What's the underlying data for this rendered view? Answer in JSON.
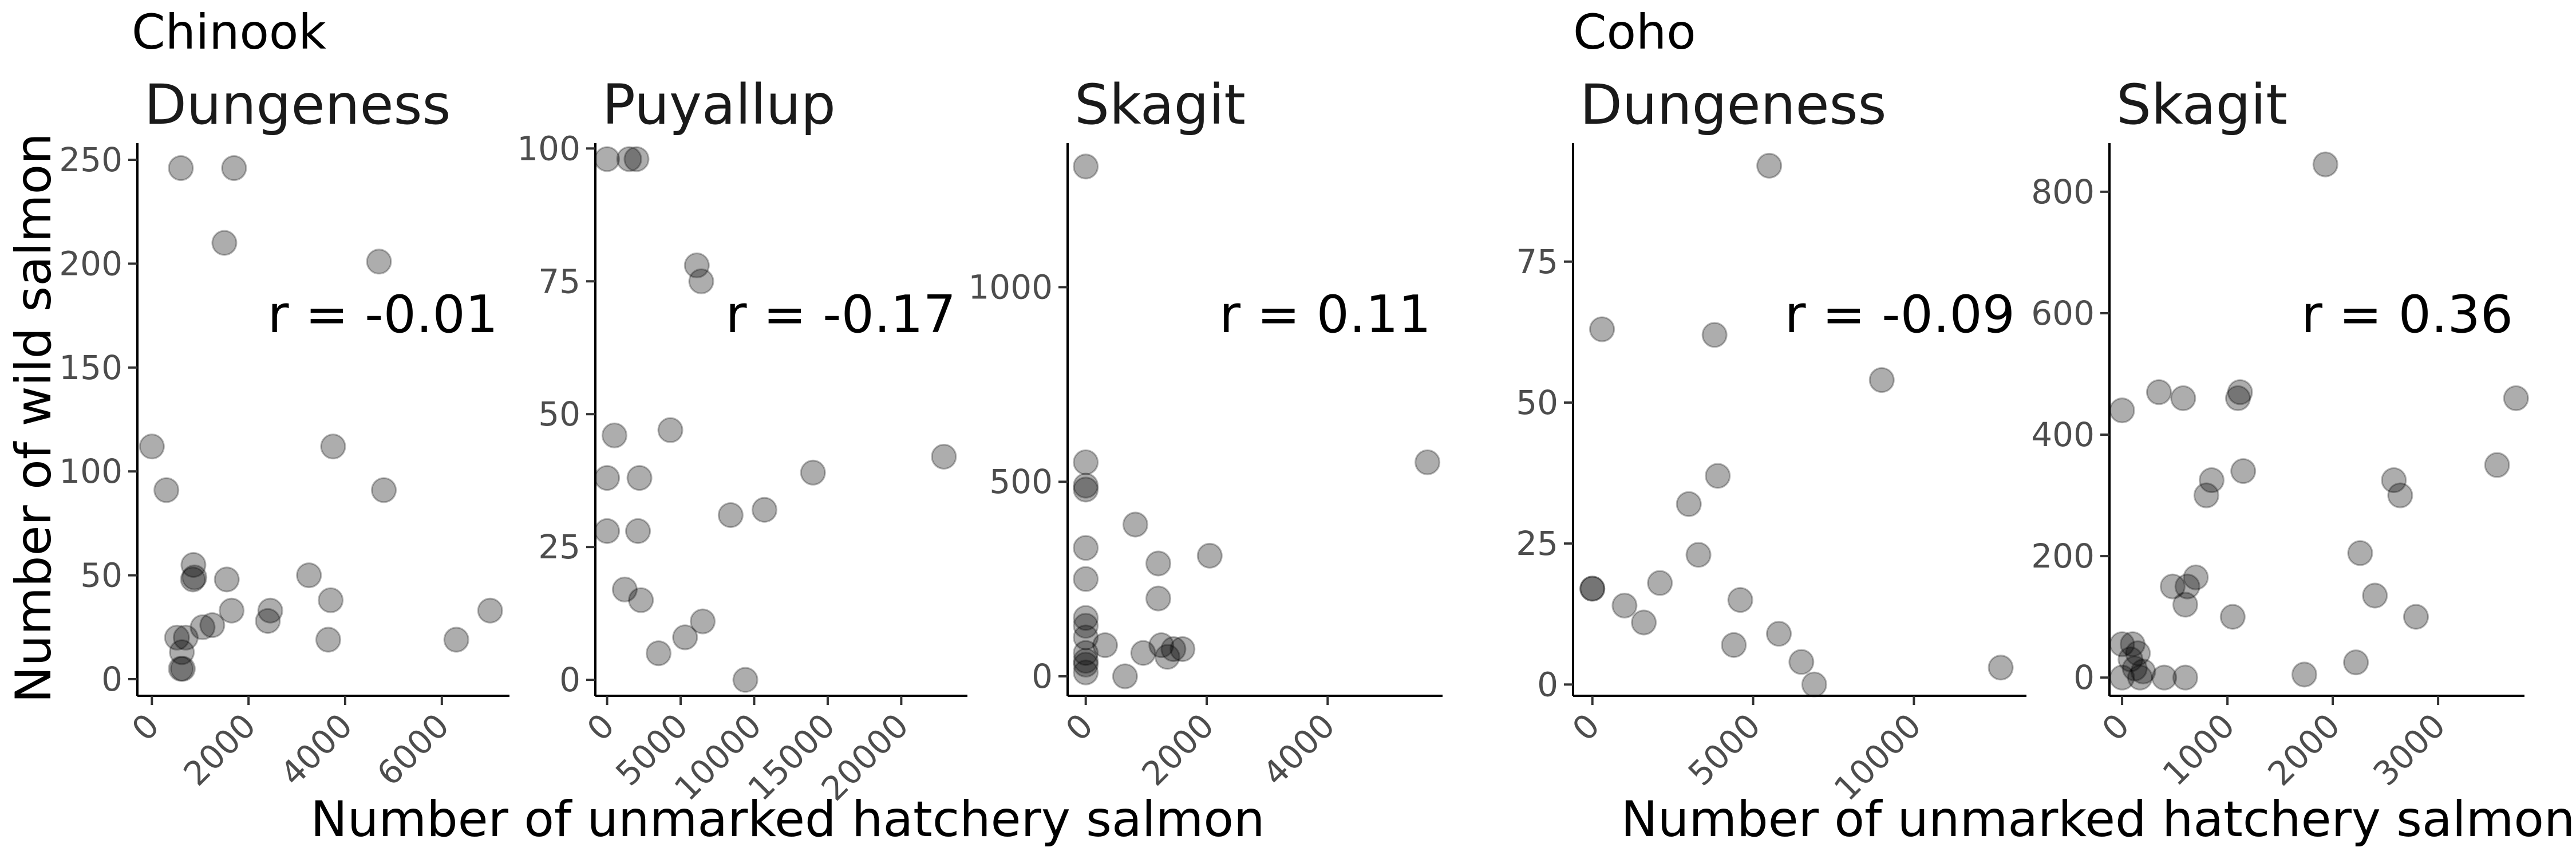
{
  "figure": {
    "y_axis_title": "Number of wild salmon",
    "groups": [
      {
        "label": "Chinook",
        "x_axis_title": "Number of unmarked hatchery salmon"
      },
      {
        "label": "Coho",
        "x_axis_title": "Number of unmarked hatchery salmon"
      }
    ]
  },
  "point_color": "#000000",
  "chart_data": [
    {
      "type": "scatter",
      "group": "Chinook",
      "title": "Dungeness",
      "annotation": "r = -0.01",
      "xlim": [
        -300,
        7400
      ],
      "ylim": [
        -8,
        258
      ],
      "xticks": [
        0,
        2000,
        4000,
        6000
      ],
      "yticks": [
        0,
        50,
        100,
        150,
        200,
        250
      ],
      "points": [
        [
          0,
          112
        ],
        [
          300,
          91
        ],
        [
          520,
          20
        ],
        [
          600,
          246
        ],
        [
          600,
          5
        ],
        [
          620,
          13
        ],
        [
          640,
          5
        ],
        [
          700,
          20
        ],
        [
          850,
          48
        ],
        [
          860,
          55
        ],
        [
          880,
          49
        ],
        [
          1050,
          25
        ],
        [
          1250,
          26
        ],
        [
          1500,
          210
        ],
        [
          1550,
          48
        ],
        [
          1650,
          33
        ],
        [
          1700,
          246
        ],
        [
          2400,
          28
        ],
        [
          2450,
          33
        ],
        [
          3250,
          50
        ],
        [
          3650,
          19
        ],
        [
          3700,
          38
        ],
        [
          3750,
          112
        ],
        [
          4700,
          201
        ],
        [
          4800,
          91
        ],
        [
          6300,
          19
        ],
        [
          7000,
          33
        ]
      ]
    },
    {
      "type": "scatter",
      "group": "Chinook",
      "title": "Puyallup",
      "annotation": "r = -0.17",
      "xlim": [
        -800,
        24500
      ],
      "ylim": [
        -3,
        101
      ],
      "xticks": [
        0,
        5000,
        10000,
        15000,
        20000
      ],
      "yticks": [
        0,
        25,
        50,
        75,
        100
      ],
      "points": [
        [
          0,
          98
        ],
        [
          0,
          38
        ],
        [
          0,
          28
        ],
        [
          500,
          46
        ],
        [
          1200,
          17
        ],
        [
          1500,
          98
        ],
        [
          2000,
          98
        ],
        [
          2100,
          28
        ],
        [
          2200,
          38
        ],
        [
          2300,
          15
        ],
        [
          3500,
          5
        ],
        [
          4300,
          47
        ],
        [
          5300,
          8
        ],
        [
          6100,
          78
        ],
        [
          6400,
          75
        ],
        [
          6500,
          11
        ],
        [
          8400,
          31
        ],
        [
          9400,
          0
        ],
        [
          10700,
          32
        ],
        [
          14000,
          39
        ],
        [
          22900,
          42
        ]
      ]
    },
    {
      "type": "scatter",
      "group": "Chinook",
      "title": "Skagit",
      "annotation": "r = 0.11",
      "xlim": [
        -300,
        5900
      ],
      "ylim": [
        -50,
        1370
      ],
      "xticks": [
        0,
        2000,
        4000
      ],
      "yticks": [
        0,
        500,
        1000
      ],
      "points": [
        [
          0,
          1310
        ],
        [
          0,
          550
        ],
        [
          0,
          490
        ],
        [
          0,
          480
        ],
        [
          0,
          330
        ],
        [
          0,
          250
        ],
        [
          0,
          150
        ],
        [
          0,
          130
        ],
        [
          0,
          100
        ],
        [
          0,
          60
        ],
        [
          0,
          40
        ],
        [
          0,
          30
        ],
        [
          0,
          10
        ],
        [
          320,
          80
        ],
        [
          650,
          0
        ],
        [
          820,
          390
        ],
        [
          950,
          60
        ],
        [
          1200,
          290
        ],
        [
          1200,
          200
        ],
        [
          1250,
          80
        ],
        [
          1350,
          50
        ],
        [
          1450,
          70
        ],
        [
          1600,
          70
        ],
        [
          2050,
          310
        ],
        [
          5650,
          550
        ]
      ]
    },
    {
      "type": "scatter",
      "group": "Coho",
      "title": "Dungeness",
      "annotation": "r = -0.09",
      "xlim": [
        -600,
        13500
      ],
      "ylim": [
        -2,
        96
      ],
      "xticks": [
        0,
        5000,
        10000
      ],
      "yticks": [
        0,
        25,
        50,
        75
      ],
      "points": [
        [
          0,
          17
        ],
        [
          0,
          17
        ],
        [
          300,
          63
        ],
        [
          1000,
          14
        ],
        [
          1600,
          11
        ],
        [
          2100,
          18
        ],
        [
          3000,
          32
        ],
        [
          3300,
          23
        ],
        [
          3800,
          62
        ],
        [
          3900,
          37
        ],
        [
          4400,
          7
        ],
        [
          4600,
          15
        ],
        [
          5500,
          92
        ],
        [
          5800,
          9
        ],
        [
          6500,
          4
        ],
        [
          6900,
          0
        ],
        [
          9000,
          54
        ],
        [
          12700,
          3
        ]
      ]
    },
    {
      "type": "scatter",
      "group": "Coho",
      "title": "Skagit",
      "annotation": "r = 0.36",
      "xlim": [
        -120,
        3820
      ],
      "ylim": [
        -30,
        880
      ],
      "xticks": [
        0,
        1000,
        2000,
        3000
      ],
      "yticks": [
        0,
        200,
        400,
        600,
        800
      ],
      "points": [
        [
          0,
          440
        ],
        [
          0,
          55
        ],
        [
          0,
          0
        ],
        [
          80,
          30
        ],
        [
          100,
          55
        ],
        [
          120,
          15
        ],
        [
          150,
          40
        ],
        [
          170,
          0
        ],
        [
          200,
          10
        ],
        [
          350,
          470
        ],
        [
          400,
          0
        ],
        [
          480,
          150
        ],
        [
          580,
          460
        ],
        [
          600,
          120
        ],
        [
          600,
          0
        ],
        [
          620,
          150
        ],
        [
          700,
          165
        ],
        [
          800,
          300
        ],
        [
          850,
          325
        ],
        [
          1050,
          100
        ],
        [
          1100,
          460
        ],
        [
          1120,
          470
        ],
        [
          1150,
          340
        ],
        [
          1730,
          5
        ],
        [
          1930,
          845
        ],
        [
          2220,
          25
        ],
        [
          2260,
          205
        ],
        [
          2400,
          135
        ],
        [
          2580,
          325
        ],
        [
          2640,
          300
        ],
        [
          2790,
          100
        ],
        [
          3560,
          350
        ],
        [
          3740,
          460
        ]
      ]
    }
  ]
}
